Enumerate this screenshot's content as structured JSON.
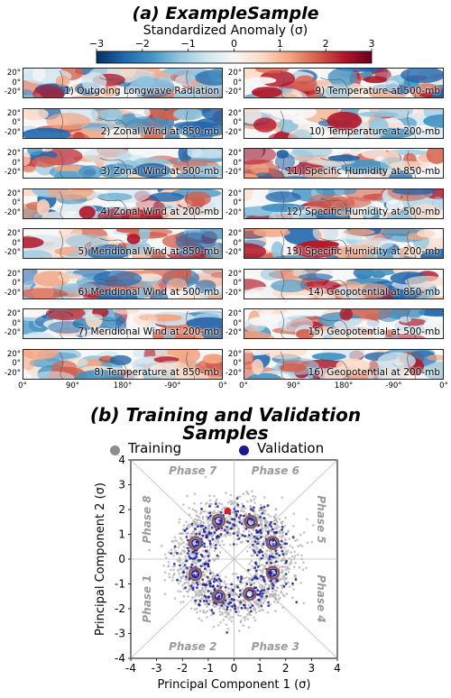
{
  "panel_a": {
    "title": "(a) ExampleSample",
    "colorbar": {
      "label": "Standardized Anomaly (σ)",
      "ticks": [
        "−3",
        "−2",
        "−1",
        "0",
        "1",
        "2",
        "3"
      ],
      "colors": [
        "#67001f",
        "#b2182b",
        "#d6604d",
        "#f4a582",
        "#fddbc7",
        "#f7f7f7",
        "#d1e5f0",
        "#92c5de",
        "#4393c3",
        "#2166ac",
        "#053061"
      ]
    },
    "lat_ticks": [
      "20°",
      "0°",
      "-20°"
    ],
    "lon_ticks": [
      "0°",
      "90°",
      "180°",
      "-90°",
      "0°"
    ],
    "maps": [
      {
        "label": "1) Outgoing Longwave Radiation",
        "seed": 1
      },
      {
        "label": "2) Zonal Wind at 850-mb",
        "seed": 2
      },
      {
        "label": "3) Zonal Wind at 500-mb",
        "seed": 3
      },
      {
        "label": "4) Zonal Wind at 200-mb",
        "seed": 4
      },
      {
        "label": "5) Meridional Wind at 850-mb",
        "seed": 5
      },
      {
        "label": "6) Meridional Wind at 500-mb",
        "seed": 6
      },
      {
        "label": "7) Meridional Wind at 200-mb",
        "seed": 7
      },
      {
        "label": "8) Temperature at 850-mb",
        "seed": 8
      },
      {
        "label": "9) Temperature at 500-mb",
        "seed": 9
      },
      {
        "label": "10) Temperature at 200-mb",
        "seed": 10
      },
      {
        "label": "11) Specific Humidity at 850-mb",
        "seed": 11
      },
      {
        "label": "12) Specific Humidity at 500-mb",
        "seed": 12
      },
      {
        "label": "13) Specific Humidity at 200-mb",
        "seed": 13
      },
      {
        "label": "14) Geopotential at 850-mb",
        "seed": 14
      },
      {
        "label": "15) Geopotential at 500-mb",
        "seed": 15
      },
      {
        "label": "16) Geopotential at 200-mb",
        "seed": 16
      }
    ]
  },
  "panel_b": {
    "title_line1": "(b) Training and Validation",
    "title_line2": "Samples",
    "legend": [
      {
        "label": "Training",
        "color": "#8c8c8c"
      },
      {
        "label": "Validation",
        "color": "#1a1a8c"
      }
    ],
    "phases": [
      "Phase 1",
      "Phase 2",
      "Phase 3",
      "Phase 4",
      "Phase 5",
      "Phase 6",
      "Phase 7",
      "Phase 8"
    ],
    "colors": {
      "training": "#b0b0b0",
      "validation": "#1f1f99",
      "centroid_ring": "#8b5a5a",
      "example": "#e8141c"
    }
  },
  "chart_data": {
    "type": "scatter",
    "xlabel": "Principal Component 1 (σ)",
    "ylabel": "Principal Component 2 (σ)",
    "xlim": [
      -4,
      4
    ],
    "ylim": [
      -4,
      4
    ],
    "xticks": [
      "-4",
      "-3",
      "-2",
      "-1",
      "0",
      "1",
      "2",
      "3",
      "4"
    ],
    "yticks": [
      "4",
      "3",
      "2",
      "1",
      "0",
      "-1",
      "-2",
      "-3",
      "-4"
    ],
    "series": [
      {
        "name": "Training",
        "distribution": "annulus",
        "radius_mean": 1.8,
        "radius_sd": 0.45,
        "count": 1400
      },
      {
        "name": "Validation",
        "distribution": "annulus",
        "radius_mean": 1.6,
        "radius_sd": 0.4,
        "count": 420
      }
    ],
    "phase_centroids": [
      {
        "x": -1.5,
        "y": -0.6
      },
      {
        "x": -0.6,
        "y": -1.5
      },
      {
        "x": 0.6,
        "y": -1.4
      },
      {
        "x": 1.5,
        "y": -0.55
      },
      {
        "x": 1.5,
        "y": 0.65
      },
      {
        "x": 0.65,
        "y": 1.5
      },
      {
        "x": -0.6,
        "y": 1.55
      },
      {
        "x": -1.5,
        "y": 0.65
      }
    ],
    "example_point": {
      "x": -0.25,
      "y": 1.95
    }
  }
}
